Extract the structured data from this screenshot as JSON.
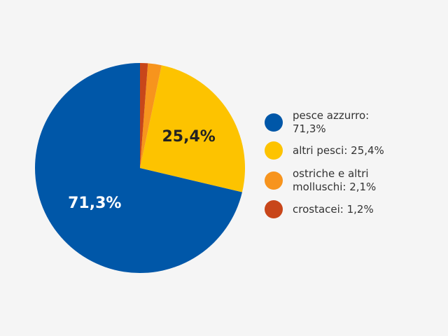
{
  "chart_data": {
    "type": "pie",
    "categories": [
      "pesce azzurro",
      "altri pesci",
      "ostriche e altri molluschi",
      "crostacei"
    ],
    "values": [
      71.3,
      25.4,
      2.1,
      1.2
    ],
    "value_labels": [
      "71,3%",
      "25,4%",
      null,
      null
    ],
    "legend_labels": [
      "pesce azzurro: 71,3%",
      "altri pesci: 25,4%",
      "ostriche e altri molluschi: 2,1%",
      "crostacei: 1,2%"
    ],
    "colors": [
      "#0057a8",
      "#fdc300",
      "#f7941d",
      "#c8461a"
    ],
    "label_colors": [
      "#ffffff",
      "#222222",
      null,
      null
    ],
    "legend": "right"
  }
}
